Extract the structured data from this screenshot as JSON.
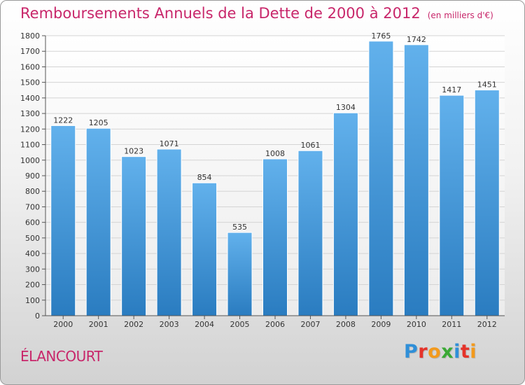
{
  "title": "Remboursements Annuels de la Dette de 2000 à 2012",
  "subtitle": "(en milliers d'€)",
  "place_name": "ÉLANCOURT",
  "logo": {
    "letters": [
      "P",
      "r",
      "o",
      "x",
      "i",
      "t",
      "i"
    ],
    "colors": [
      "#2f8fd8",
      "#e5332a",
      "#f39a1c",
      "#3aa935",
      "#2f8fd8",
      "#e5332a",
      "#f39a1c"
    ]
  },
  "colors": {
    "bar_top": "#62b1ec",
    "bar_bottom": "#2a7cc0",
    "title": "#c8266a"
  },
  "chart_data": {
    "type": "bar",
    "categories": [
      "2000",
      "2001",
      "2002",
      "2003",
      "2004",
      "2005",
      "2006",
      "2007",
      "2008",
      "2009",
      "2010",
      "2011",
      "2012"
    ],
    "values": [
      1222,
      1205,
      1023,
      1071,
      854,
      535,
      1008,
      1061,
      1304,
      1765,
      1742,
      1417,
      1451
    ],
    "ylim": [
      0,
      1800
    ],
    "yticks": [
      0,
      100,
      200,
      300,
      400,
      500,
      600,
      700,
      800,
      900,
      1000,
      1100,
      1200,
      1300,
      1400,
      1500,
      1600,
      1700,
      1800
    ],
    "grid": "horizontal",
    "data_labels": true
  }
}
